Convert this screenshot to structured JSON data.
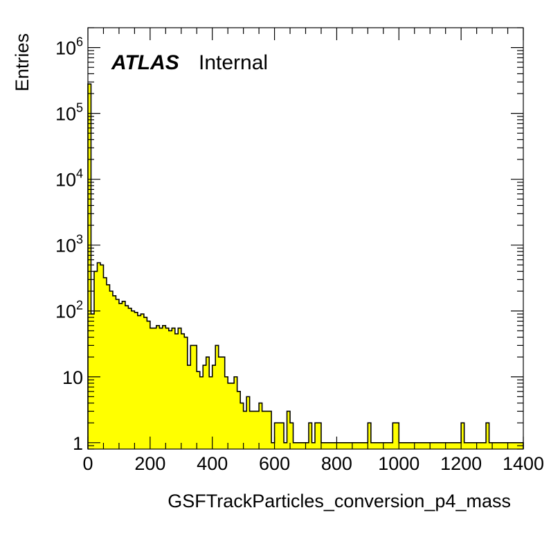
{
  "chart_data": {
    "type": "bar",
    "style": "histogram",
    "fill_color": "#ffff00",
    "line_color": "#000000",
    "xlabel": "GSFTrackParticles_conversion_p4_mass",
    "ylabel": "Entries",
    "atlas_label": "ATLAS",
    "atlas_status": "Internal",
    "xlim": [
      0,
      1400
    ],
    "ylim": [
      0.8,
      2000000
    ],
    "yscale": "log",
    "bin_width": 10,
    "xticks": [
      0,
      200,
      400,
      600,
      800,
      1000,
      1200,
      1400
    ],
    "xtick_labels": [
      "0",
      "200",
      "400",
      "600",
      "800",
      "1000",
      "1200",
      "1400"
    ],
    "yticks": [
      1,
      10,
      100,
      1000,
      10000,
      100000,
      1000000
    ],
    "ytick_labels": [
      {
        "base": "1",
        "exp": ""
      },
      {
        "base": "10",
        "exp": ""
      },
      {
        "base": "10",
        "exp": "2"
      },
      {
        "base": "10",
        "exp": "3"
      },
      {
        "base": "10",
        "exp": "4"
      },
      {
        "base": "10",
        "exp": "5"
      },
      {
        "base": "10",
        "exp": "6"
      }
    ],
    "x": [
      5,
      15,
      25,
      35,
      45,
      55,
      65,
      75,
      85,
      95,
      105,
      115,
      125,
      135,
      145,
      155,
      165,
      175,
      185,
      195,
      205,
      215,
      225,
      235,
      245,
      255,
      265,
      275,
      285,
      295,
      305,
      315,
      325,
      335,
      345,
      355,
      365,
      375,
      385,
      395,
      405,
      415,
      425,
      435,
      445,
      455,
      465,
      475,
      485,
      495,
      505,
      515,
      525,
      535,
      545,
      555,
      565,
      575,
      585,
      595,
      605,
      615,
      625,
      635,
      645,
      655,
      665,
      675,
      685,
      695,
      705,
      715,
      725,
      735,
      745,
      755,
      765,
      775,
      785,
      795,
      805,
      815,
      825,
      835,
      845,
      855,
      865,
      875,
      885,
      895,
      905,
      915,
      925,
      935,
      945,
      955,
      965,
      975,
      985,
      995,
      1005,
      1015,
      1025,
      1035,
      1045,
      1055,
      1065,
      1075,
      1085,
      1095,
      1105,
      1115,
      1125,
      1135,
      1145,
      1155,
      1165,
      1175,
      1185,
      1195,
      1205,
      1215,
      1225,
      1235,
      1245,
      1255,
      1265,
      1275,
      1285,
      1295,
      1305,
      1315,
      1325,
      1335,
      1345,
      1355,
      1365,
      1375,
      1385,
      1395
    ],
    "values": [
      280000,
      90,
      400,
      540,
      500,
      320,
      250,
      200,
      170,
      150,
      130,
      140,
      120,
      110,
      100,
      95,
      85,
      90,
      80,
      70,
      55,
      55,
      60,
      55,
      60,
      55,
      50,
      55,
      45,
      55,
      45,
      40,
      15,
      30,
      30,
      12,
      10,
      15,
      20,
      10,
      15,
      30,
      20,
      20,
      10,
      8,
      8,
      10,
      6,
      4,
      3,
      5,
      3,
      3,
      3,
      4,
      3,
      3,
      3,
      1,
      2,
      2,
      2,
      1,
      3,
      2,
      1,
      1,
      1,
      1,
      1,
      2,
      1,
      2,
      2,
      1,
      1,
      1,
      1,
      1,
      1,
      1,
      1,
      1,
      1,
      1,
      1,
      1,
      1,
      1,
      2,
      1,
      1,
      1,
      1,
      1,
      1,
      1,
      2,
      2,
      1,
      1,
      1,
      1,
      1,
      1,
      1,
      1,
      1,
      1,
      1,
      1,
      1,
      1,
      1,
      1,
      1,
      1,
      1,
      1,
      2,
      1,
      1,
      1,
      1,
      1,
      1,
      1,
      2,
      1,
      1,
      1,
      1,
      1,
      1,
      1,
      1,
      1,
      1,
      1
    ],
    "grid": false
  }
}
